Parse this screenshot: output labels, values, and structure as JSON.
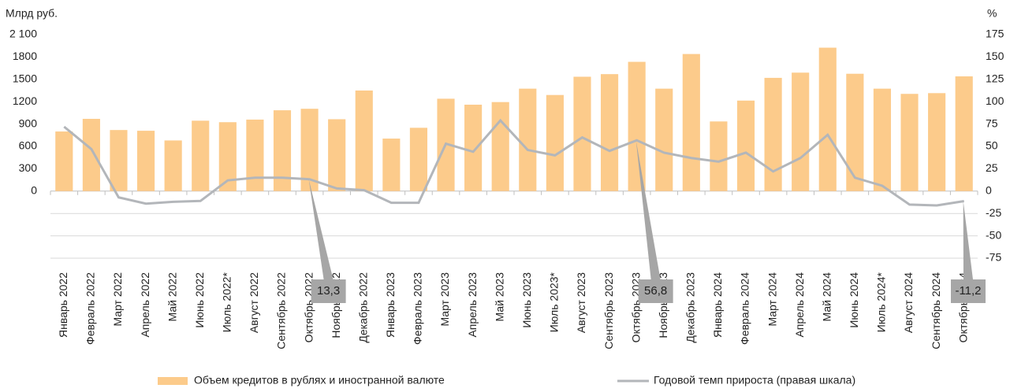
{
  "chart_data": {
    "type": "bar",
    "y_label": "Млрд руб.",
    "y2_label": "%",
    "categories": [
      "Январь 2022",
      "Февраль 2022",
      "Март 2022",
      "Апрель 2022",
      "Май 2022",
      "Июнь 2022",
      "Июль 2022*",
      "Август 2022",
      "Сентябрь 2022",
      "Октябрь 2022",
      "Ноябрь 2022",
      "Декабрь 2022",
      "Январь 2023",
      "Февраль 2023",
      "Март 2023",
      "Апрель 2023",
      "Май 2023",
      "Июнь 2023",
      "Июль 2023*",
      "Август 2023",
      "Сентябрь 2023",
      "Октябрь 2023",
      "Ноябрь 2023",
      "Декабрь 2023",
      "Январь 2024",
      "Февраль 2024",
      "Март 2024",
      "Апрель 2024",
      "Май 2024",
      "Июнь 2024",
      "Июль 2024*",
      "Август 2024",
      "Сентябрь 2024",
      "Октябрь 2024"
    ],
    "series": [
      {
        "name": "Объем кредитов в рублях и иностранной валюте",
        "type": "bar",
        "color": "#fccb8b",
        "values": [
          800,
          970,
          820,
          810,
          680,
          945,
          925,
          960,
          1085,
          1105,
          965,
          1350,
          705,
          850,
          1240,
          1160,
          1195,
          1375,
          1290,
          1535,
          1570,
          1735,
          1375,
          1840,
          935,
          1215,
          1520,
          1590,
          1925,
          1575,
          1375,
          1305,
          1315,
          1540
        ]
      },
      {
        "name": "Годовой темп прироста (правая шкала)",
        "type": "line",
        "axis": "y2",
        "color": "#b3b6ba",
        "values": [
          72,
          47,
          -7,
          -14,
          -12,
          -11,
          12,
          15,
          15,
          13.3,
          3,
          1,
          -13,
          -13,
          53,
          44,
          79,
          46,
          40,
          60,
          45,
          56.8,
          43,
          37,
          33,
          43,
          22,
          37,
          63,
          15,
          6,
          -15,
          -16,
          -11.2
        ],
        "value_labels": [
          null,
          null,
          null,
          null,
          null,
          null,
          null,
          null,
          null,
          "13,3",
          null,
          null,
          null,
          null,
          null,
          null,
          null,
          null,
          null,
          null,
          null,
          "56,8",
          null,
          null,
          null,
          null,
          null,
          null,
          null,
          null,
          null,
          null,
          null,
          "-11,2"
        ]
      }
    ],
    "ylim": [
      -900,
      2100
    ],
    "yticks": [
      0,
      300,
      600,
      900,
      1200,
      1500,
      1800,
      {
        "value": 2100,
        "label": "2 100"
      }
    ],
    "y2lim": [
      -75,
      175
    ],
    "y2ticks": [
      -75,
      -50,
      -25,
      0,
      25,
      50,
      75,
      100,
      125,
      150,
      175
    ],
    "grid": true
  }
}
